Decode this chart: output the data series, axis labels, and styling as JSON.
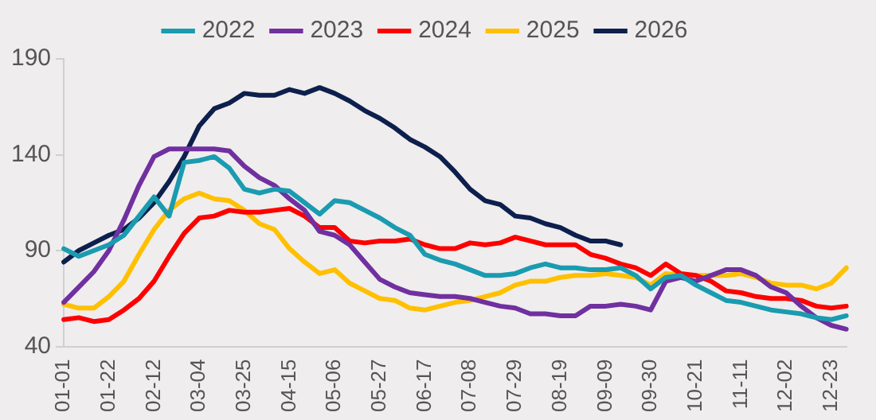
{
  "chart_data": {
    "type": "line",
    "categories": [
      "01-01",
      null,
      null,
      "01-22",
      null,
      null,
      "02-12",
      null,
      null,
      "03-04",
      null,
      null,
      "03-25",
      null,
      null,
      "04-15",
      null,
      null,
      "05-06",
      null,
      null,
      "05-27",
      null,
      null,
      "06-17",
      null,
      null,
      "07-08",
      null,
      null,
      "07-29",
      null,
      null,
      "08-19",
      null,
      null,
      "09-09",
      null,
      null,
      "09-30",
      null,
      null,
      "10-21",
      null,
      null,
      "11-11",
      null,
      null,
      "12-02",
      null,
      null,
      "12-23",
      null
    ],
    "series": [
      {
        "name": "2022",
        "color": "#1a9bb0",
        "values": [
          91,
          87,
          90,
          93,
          98,
          108,
          118,
          108,
          136,
          137,
          139,
          133,
          122,
          120,
          122,
          121,
          115,
          109,
          116,
          115,
          111,
          107,
          102,
          98,
          88,
          85,
          83,
          80,
          77,
          77,
          78,
          81,
          83,
          81,
          81,
          80,
          80,
          81,
          77,
          70,
          76,
          77,
          72,
          68,
          64,
          63,
          61,
          59,
          58,
          57,
          55,
          54,
          56
        ]
      },
      {
        "name": "2023",
        "color": "#7030a0",
        "values": [
          63,
          71,
          79,
          90,
          106,
          124,
          139,
          143,
          143,
          143,
          143,
          142,
          134,
          128,
          124,
          117,
          111,
          100,
          98,
          93,
          84,
          75,
          71,
          68,
          67,
          66,
          66,
          65,
          63,
          61,
          60,
          57,
          57,
          56,
          56,
          61,
          61,
          62,
          61,
          59,
          74,
          76,
          74,
          77,
          80,
          80,
          77,
          71,
          68,
          61,
          55,
          51,
          49
        ]
      },
      {
        "name": "2024",
        "color": "#ff0000",
        "values": [
          54,
          55,
          53,
          54,
          59,
          65,
          74,
          87,
          99,
          107,
          108,
          111,
          110,
          110,
          111,
          112,
          108,
          102,
          102,
          95,
          94,
          95,
          95,
          96,
          93,
          91,
          91,
          94,
          93,
          94,
          97,
          95,
          93,
          93,
          93,
          88,
          86,
          83,
          81,
          77,
          83,
          78,
          77,
          74,
          69,
          68,
          66,
          65,
          65,
          64,
          61,
          60,
          61
        ]
      },
      {
        "name": "2025",
        "color": "#ffc000",
        "values": [
          62,
          60,
          60,
          66,
          74,
          88,
          101,
          111,
          117,
          120,
          117,
          116,
          111,
          104,
          101,
          91,
          84,
          78,
          80,
          73,
          69,
          65,
          64,
          60,
          59,
          61,
          63,
          64,
          66,
          68,
          72,
          74,
          74,
          76,
          77,
          77,
          78,
          77,
          76,
          72,
          78,
          77,
          77,
          77,
          77,
          78,
          76,
          73,
          72,
          72,
          70,
          73,
          81
        ]
      },
      {
        "name": "2026",
        "color": "#0d1f4d",
        "values": [
          84,
          90,
          94,
          98,
          101,
          107,
          115,
          126,
          139,
          155,
          164,
          167,
          172,
          171,
          171,
          174,
          172,
          175,
          172,
          168,
          163,
          159,
          154,
          148,
          144,
          139,
          131,
          122,
          116,
          114,
          108,
          107,
          104,
          102,
          98,
          95,
          95,
          93,
          null,
          null,
          null,
          null,
          null,
          null,
          null,
          null,
          null,
          null,
          null,
          null,
          null,
          null,
          null
        ]
      }
    ],
    "ylim": [
      40,
      190
    ],
    "yticks": [
      40,
      90,
      140,
      190
    ],
    "grid": false,
    "legend": "top",
    "marker": "none",
    "line_style": "solid"
  }
}
